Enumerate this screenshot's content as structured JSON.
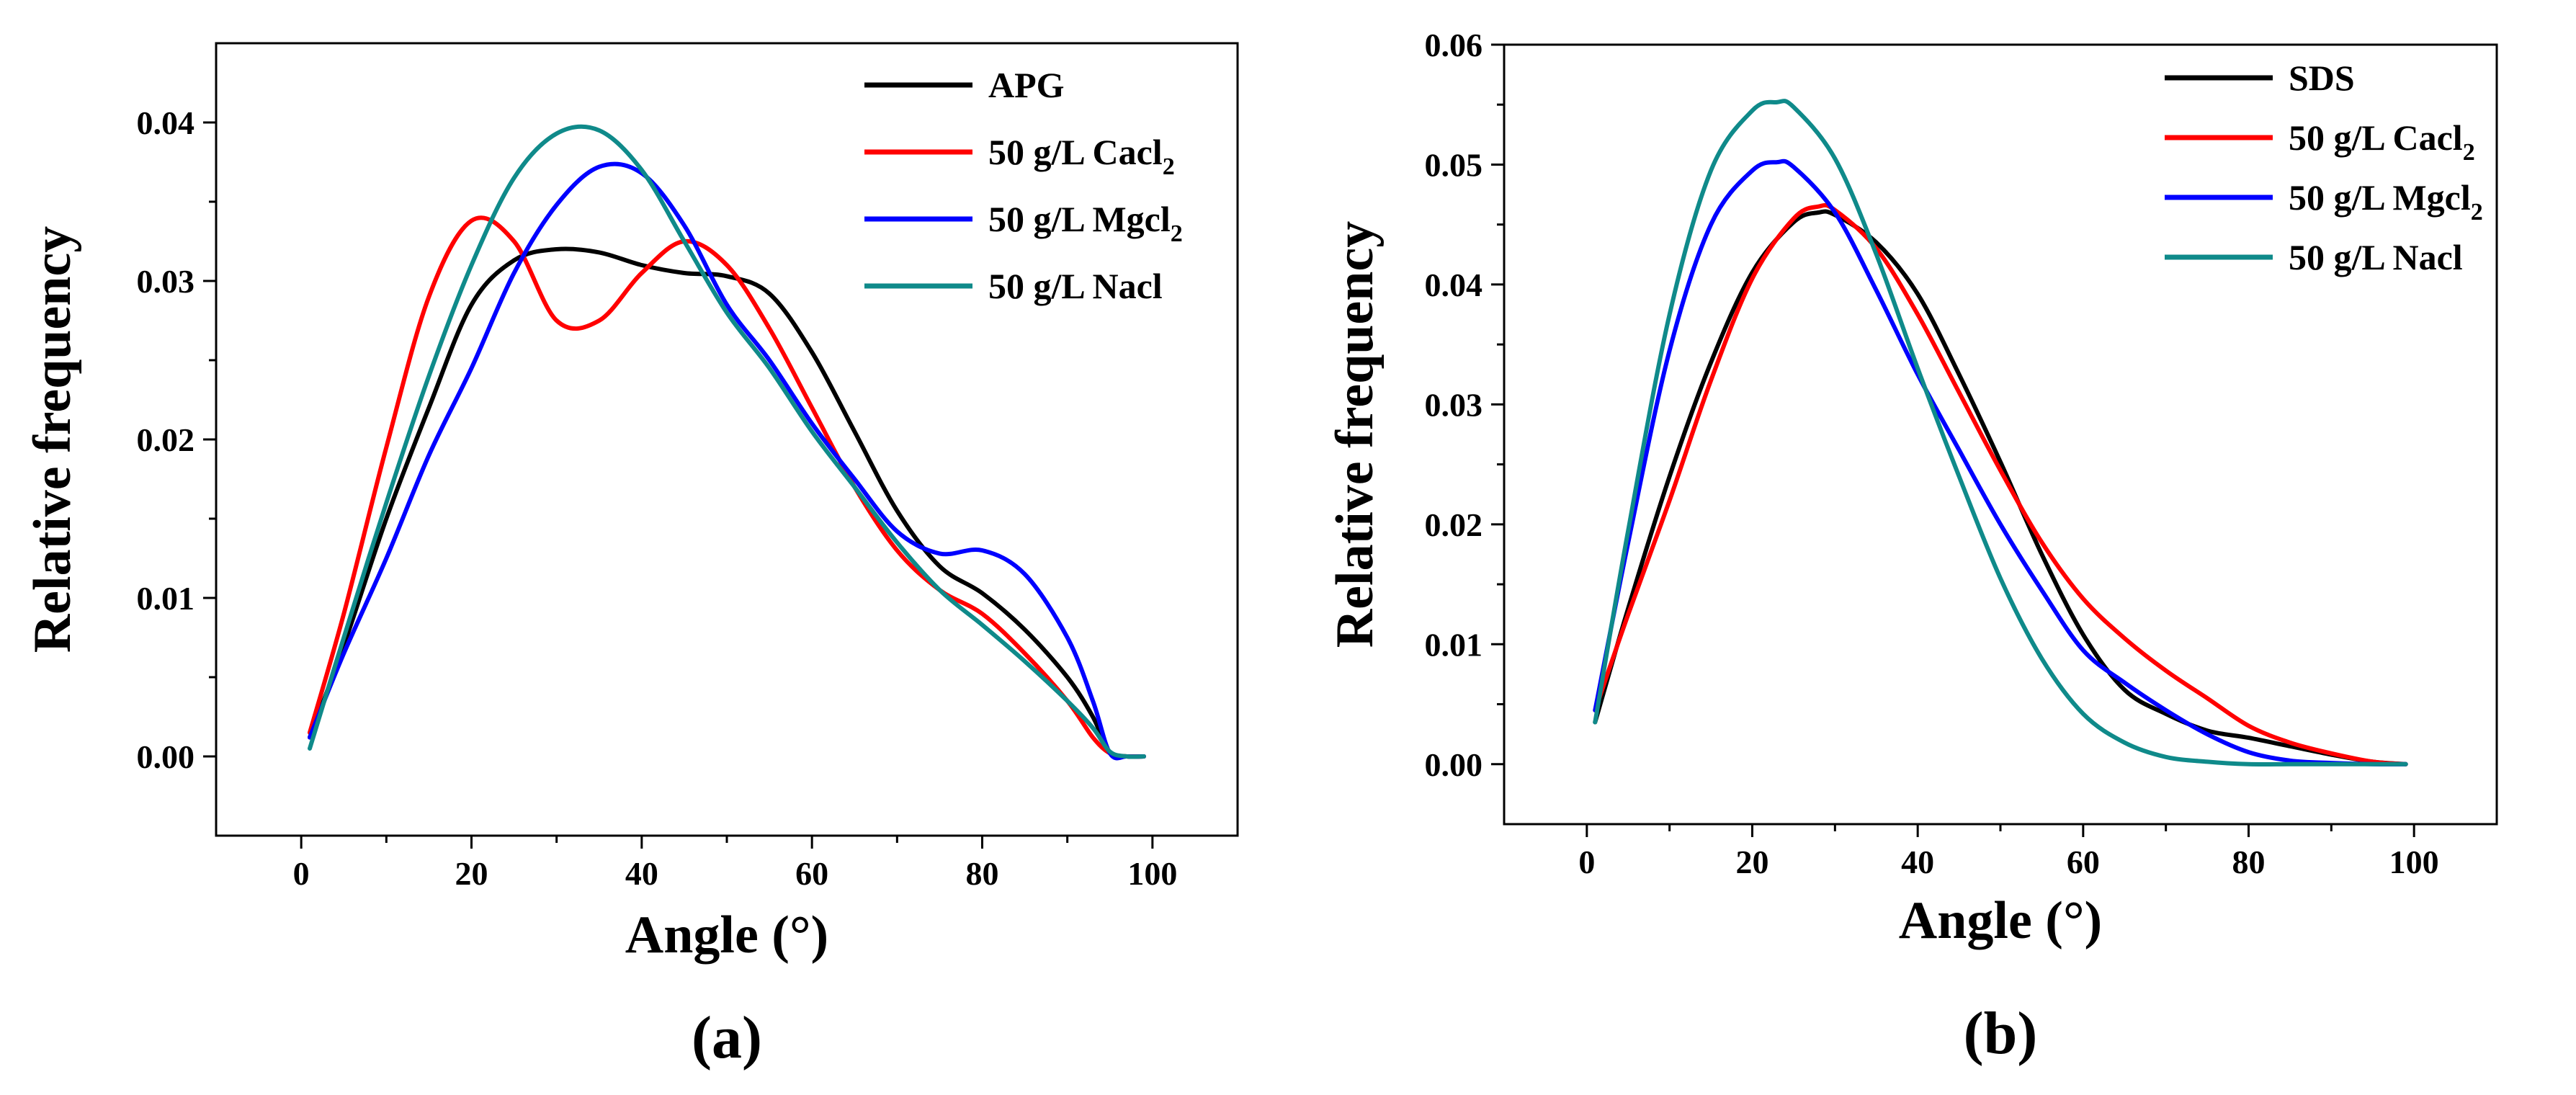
{
  "chart_data": [
    {
      "type": "line",
      "panel_label": "(a)",
      "xlabel": "Angle (°)",
      "ylabel": "Relative frequency",
      "xlim": [
        -10,
        110
      ],
      "ylim": [
        -0.005,
        0.045
      ],
      "xticks": [
        0,
        20,
        40,
        60,
        80,
        100
      ],
      "yticks": [
        0.0,
        0.01,
        0.02,
        0.03,
        0.04
      ],
      "xtick_labels": [
        "0",
        "20",
        "40",
        "60",
        "80",
        "100"
      ],
      "ytick_labels": [
        "0.00",
        "0.01",
        "0.02",
        "0.03",
        "0.04"
      ],
      "legend_position": "top-right",
      "series": [
        {
          "name": "APG",
          "label_main": "APG",
          "label_sub": "",
          "label_tail": "",
          "color": "#000000",
          "x": [
            1,
            5,
            10,
            15,
            20,
            25,
            30,
            35,
            40,
            45,
            50,
            55,
            60,
            65,
            70,
            75,
            80,
            85,
            90,
            93,
            95,
            97,
            99
          ],
          "y": [
            0.0012,
            0.007,
            0.015,
            0.022,
            0.0285,
            0.0313,
            0.032,
            0.0318,
            0.031,
            0.0305,
            0.0303,
            0.0292,
            0.0255,
            0.0205,
            0.0155,
            0.012,
            0.0103,
            0.008,
            0.005,
            0.0025,
            0.0002,
            0.0,
            0.0
          ]
        },
        {
          "name": "50 g/L Cacl2",
          "label_main": "50 g/L Cacl",
          "label_sub": "2",
          "label_tail": "",
          "color": "#ff0000",
          "x": [
            1,
            5,
            10,
            15,
            20,
            25,
            30,
            35,
            40,
            45,
            50,
            55,
            60,
            65,
            70,
            75,
            80,
            85,
            90,
            93,
            95,
            97,
            99
          ],
          "y": [
            0.0015,
            0.009,
            0.0195,
            0.029,
            0.0338,
            0.0325,
            0.0275,
            0.0275,
            0.0305,
            0.0325,
            0.031,
            0.027,
            0.022,
            0.017,
            0.013,
            0.0105,
            0.009,
            0.0065,
            0.0035,
            0.0012,
            0.0002,
            0.0,
            0.0
          ]
        },
        {
          "name": "50 g/L Mgcl2",
          "label_main": "50 g/L Mgcl",
          "label_sub": "2",
          "label_tail": "",
          "color": "#0000ff",
          "x": [
            1,
            5,
            10,
            15,
            20,
            25,
            30,
            35,
            40,
            45,
            50,
            55,
            60,
            65,
            70,
            75,
            80,
            85,
            90,
            93,
            95,
            97,
            99
          ],
          "y": [
            0.0012,
            0.0065,
            0.0125,
            0.019,
            0.0245,
            0.0305,
            0.0348,
            0.0372,
            0.0368,
            0.0335,
            0.0285,
            0.025,
            0.021,
            0.0175,
            0.0142,
            0.0128,
            0.013,
            0.0115,
            0.0075,
            0.0035,
            0.0002,
            0.0,
            0.0
          ]
        },
        {
          "name": "50 g/L Nacl",
          "label_main": "50 g/L Nacl",
          "label_sub": "",
          "label_tail": "",
          "color": "#0f8a8a",
          "x": [
            1,
            5,
            10,
            15,
            20,
            25,
            30,
            35,
            40,
            45,
            50,
            55,
            60,
            65,
            70,
            75,
            80,
            85,
            90,
            93,
            95,
            97,
            99
          ],
          "y": [
            0.0005,
            0.0075,
            0.016,
            0.024,
            0.031,
            0.0365,
            0.0393,
            0.0395,
            0.037,
            0.0325,
            0.028,
            0.0245,
            0.0205,
            0.017,
            0.0135,
            0.0105,
            0.0083,
            0.006,
            0.0035,
            0.0018,
            0.0003,
            0.0,
            0.0
          ]
        }
      ]
    },
    {
      "type": "line",
      "panel_label": "(b)",
      "xlabel": "Angle (°)",
      "ylabel": "Relative frequency",
      "xlim": [
        -10,
        110
      ],
      "ylim": [
        -0.005,
        0.06
      ],
      "xticks": [
        0,
        20,
        40,
        60,
        80,
        100
      ],
      "yticks": [
        0.0,
        0.01,
        0.02,
        0.03,
        0.04,
        0.05,
        0.06
      ],
      "xtick_labels": [
        "0",
        "20",
        "40",
        "60",
        "80",
        "100"
      ],
      "ytick_labels": [
        "0.00",
        "0.01",
        "0.02",
        "0.03",
        "0.04",
        "0.05",
        "0.06"
      ],
      "legend_position": "top-right",
      "series": [
        {
          "name": "SDS",
          "label_main": "SDS",
          "label_sub": "",
          "label_tail": "",
          "color": "#000000",
          "x": [
            1,
            5,
            10,
            15,
            20,
            25,
            28,
            30,
            35,
            40,
            45,
            50,
            55,
            60,
            65,
            70,
            75,
            80,
            85,
            90,
            95,
            99
          ],
          "y": [
            0.0035,
            0.013,
            0.024,
            0.0335,
            0.041,
            0.0452,
            0.046,
            0.0458,
            0.0435,
            0.0392,
            0.0325,
            0.0252,
            0.0175,
            0.0108,
            0.0062,
            0.0042,
            0.0028,
            0.0022,
            0.0015,
            0.0008,
            0.0002,
            0.0
          ]
        },
        {
          "name": "50 g/L Cacl2",
          "label_main": "50 g/L Cacl",
          "label_sub": "2",
          "label_tail": "",
          "color": "#ff0000",
          "x": [
            1,
            5,
            10,
            15,
            20,
            25,
            28,
            30,
            35,
            40,
            45,
            50,
            55,
            60,
            65,
            70,
            75,
            80,
            85,
            90,
            95,
            99
          ],
          "y": [
            0.0045,
            0.0125,
            0.022,
            0.032,
            0.0405,
            0.0455,
            0.0465,
            0.0462,
            0.043,
            0.0375,
            0.031,
            0.0245,
            0.0185,
            0.0138,
            0.0105,
            0.0078,
            0.0055,
            0.0032,
            0.0018,
            0.0009,
            0.0002,
            0.0
          ]
        },
        {
          "name": "50 g/L Mgcl2",
          "label_main": "50 g/L Mgcl",
          "label_sub": "2",
          "label_tail": "",
          "color": "#0000ff",
          "x": [
            1,
            5,
            10,
            15,
            20,
            23,
            25,
            30,
            35,
            40,
            45,
            50,
            55,
            60,
            65,
            70,
            75,
            80,
            85,
            90,
            95,
            99
          ],
          "y": [
            0.0045,
            0.0185,
            0.0345,
            0.045,
            0.0495,
            0.0502,
            0.0498,
            0.046,
            0.0395,
            0.0325,
            0.0262,
            0.02,
            0.0145,
            0.0095,
            0.0068,
            0.0045,
            0.0025,
            0.001,
            0.0003,
            0.0001,
            0.0,
            0.0
          ]
        },
        {
          "name": "50 g/L Nacl",
          "label_main": "50 g/L Nacl",
          "label_sub": "",
          "label_tail": "",
          "color": "#0f8a8a",
          "x": [
            1,
            5,
            10,
            15,
            20,
            23,
            25,
            30,
            35,
            40,
            45,
            50,
            55,
            60,
            65,
            70,
            75,
            80,
            85,
            90,
            95,
            99
          ],
          "y": [
            0.0035,
            0.0195,
            0.0375,
            0.0495,
            0.0545,
            0.0552,
            0.0548,
            0.0505,
            0.0425,
            0.033,
            0.024,
            0.0155,
            0.0088,
            0.0042,
            0.0018,
            0.0006,
            0.0002,
            0.0,
            0.0,
            0.0,
            0.0,
            0.0
          ]
        }
      ]
    }
  ]
}
